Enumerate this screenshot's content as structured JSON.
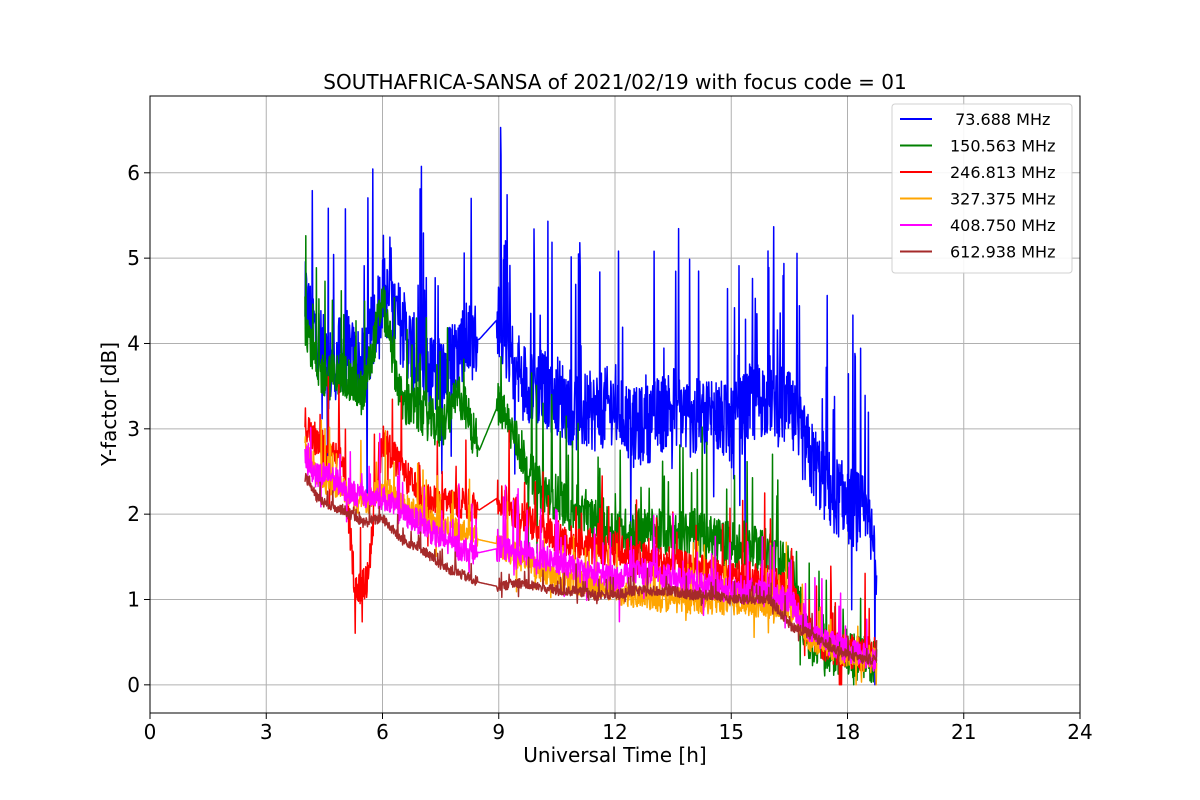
{
  "chart_data": {
    "type": "line",
    "title": "SOUTHAFRICA-SANSA of 2021/02/19 with focus code = 01",
    "xlabel": "Universal Time [h]",
    "ylabel": "Y-factor [dB]",
    "xlim": [
      0,
      24
    ],
    "ylim": [
      -0.33,
      6.9
    ],
    "xticks": [
      0,
      3,
      6,
      9,
      12,
      15,
      18,
      21,
      24
    ],
    "yticks": [
      0,
      1,
      2,
      3,
      4,
      5,
      6
    ],
    "grid": true,
    "legend_position": "top-right",
    "series": [
      {
        "name": " 73.688 MHz",
        "color": "#0000ff",
        "volatility": 0.95,
        "points": [
          [
            4.0,
            4.5
          ],
          [
            4.3,
            4.1
          ],
          [
            4.6,
            3.7
          ],
          [
            5.0,
            3.9
          ],
          [
            5.5,
            3.7
          ],
          [
            6.0,
            4.6
          ],
          [
            6.5,
            4.2
          ],
          [
            7.0,
            3.7
          ],
          [
            7.5,
            3.6
          ],
          [
            8.0,
            4.0
          ],
          [
            8.5,
            4.05
          ],
          [
            9.0,
            4.3
          ],
          [
            9.5,
            3.6
          ],
          [
            10.0,
            3.5
          ],
          [
            10.5,
            3.4
          ],
          [
            11.0,
            3.2
          ],
          [
            11.5,
            3.2
          ],
          [
            12.0,
            3.3
          ],
          [
            12.5,
            3.0
          ],
          [
            13.0,
            3.1
          ],
          [
            13.5,
            3.3
          ],
          [
            14.0,
            3.1
          ],
          [
            14.5,
            3.2
          ],
          [
            15.0,
            3.0
          ],
          [
            15.5,
            3.3
          ],
          [
            16.0,
            3.4
          ],
          [
            16.5,
            3.2
          ],
          [
            17.0,
            2.7
          ],
          [
            17.5,
            2.3
          ],
          [
            18.0,
            2.1
          ],
          [
            18.4,
            2.0
          ],
          [
            18.75,
            1.5
          ]
        ]
      },
      {
        "name": "150.563 MHz",
        "color": "#008000",
        "volatility": 0.55,
        "points": [
          [
            4.0,
            4.3
          ],
          [
            4.3,
            3.7
          ],
          [
            4.6,
            3.6
          ],
          [
            5.0,
            3.65
          ],
          [
            5.5,
            3.4
          ],
          [
            6.0,
            4.5
          ],
          [
            6.5,
            3.3
          ],
          [
            7.0,
            3.2
          ],
          [
            7.5,
            3.0
          ],
          [
            8.0,
            3.4
          ],
          [
            8.5,
            2.75
          ],
          [
            9.0,
            3.3
          ],
          [
            9.5,
            2.8
          ],
          [
            10.0,
            2.3
          ],
          [
            10.5,
            2.2
          ],
          [
            11.0,
            2.0
          ],
          [
            11.5,
            1.9
          ],
          [
            12.0,
            1.8
          ],
          [
            12.5,
            1.8
          ],
          [
            13.0,
            1.8
          ],
          [
            13.5,
            1.75
          ],
          [
            14.0,
            1.8
          ],
          [
            14.5,
            1.7
          ],
          [
            15.0,
            1.65
          ],
          [
            15.5,
            1.6
          ],
          [
            16.0,
            1.55
          ],
          [
            16.5,
            1.4
          ],
          [
            17.0,
            0.5
          ],
          [
            17.5,
            0.4
          ],
          [
            18.0,
            0.35
          ],
          [
            18.4,
            0.3
          ],
          [
            18.75,
            0.3
          ]
        ]
      },
      {
        "name": "246.813 MHz",
        "color": "#ff0000",
        "volatility": 0.4,
        "points": [
          [
            4.0,
            3.1
          ],
          [
            4.3,
            2.8
          ],
          [
            4.6,
            2.7
          ],
          [
            5.0,
            2.6
          ],
          [
            5.3,
            1.1
          ],
          [
            5.6,
            1.2
          ],
          [
            6.0,
            2.9
          ],
          [
            6.5,
            2.5
          ],
          [
            7.0,
            2.2
          ],
          [
            7.5,
            2.1
          ],
          [
            8.0,
            2.15
          ],
          [
            8.5,
            2.05
          ],
          [
            9.0,
            2.2
          ],
          [
            9.5,
            2.0
          ],
          [
            10.0,
            1.85
          ],
          [
            10.5,
            1.75
          ],
          [
            11.0,
            1.65
          ],
          [
            11.5,
            1.6
          ],
          [
            12.0,
            1.6
          ],
          [
            12.5,
            1.5
          ],
          [
            13.0,
            1.45
          ],
          [
            13.5,
            1.4
          ],
          [
            14.0,
            1.35
          ],
          [
            14.5,
            1.3
          ],
          [
            15.0,
            1.25
          ],
          [
            15.5,
            1.25
          ],
          [
            16.0,
            1.2
          ],
          [
            16.5,
            1.1
          ],
          [
            17.0,
            0.6
          ],
          [
            17.5,
            0.45
          ],
          [
            18.0,
            0.4
          ],
          [
            18.4,
            0.35
          ],
          [
            18.75,
            0.4
          ]
        ]
      },
      {
        "name": "327.375 MHz",
        "color": "#ffa500",
        "volatility": 0.3,
        "points": [
          [
            4.0,
            2.8
          ],
          [
            4.3,
            2.5
          ],
          [
            4.6,
            2.35
          ],
          [
            5.0,
            2.3
          ],
          [
            5.5,
            2.1
          ],
          [
            6.0,
            2.3
          ],
          [
            6.5,
            2.1
          ],
          [
            7.0,
            2.0
          ],
          [
            7.5,
            1.9
          ],
          [
            8.0,
            1.8
          ],
          [
            8.5,
            1.7
          ],
          [
            9.0,
            1.65
          ],
          [
            9.5,
            1.5
          ],
          [
            10.0,
            1.35
          ],
          [
            10.5,
            1.25
          ],
          [
            11.0,
            1.2
          ],
          [
            11.5,
            1.15
          ],
          [
            12.0,
            1.1
          ],
          [
            12.5,
            1.05
          ],
          [
            13.0,
            1.0
          ],
          [
            13.5,
            1.0
          ],
          [
            14.0,
            0.98
          ],
          [
            14.5,
            0.97
          ],
          [
            15.0,
            0.95
          ],
          [
            15.5,
            0.95
          ],
          [
            16.0,
            0.92
          ],
          [
            16.5,
            0.9
          ],
          [
            17.0,
            0.55
          ],
          [
            17.5,
            0.45
          ],
          [
            18.0,
            0.35
          ],
          [
            18.4,
            0.3
          ],
          [
            18.75,
            0.3
          ]
        ]
      },
      {
        "name": "408.750 MHz",
        "color": "#ff00ff",
        "volatility": 0.3,
        "points": [
          [
            4.0,
            2.65
          ],
          [
            4.3,
            2.45
          ],
          [
            4.6,
            2.5
          ],
          [
            5.0,
            2.3
          ],
          [
            5.5,
            2.2
          ],
          [
            6.0,
            2.2
          ],
          [
            6.5,
            2.0
          ],
          [
            7.0,
            1.9
          ],
          [
            7.5,
            1.7
          ],
          [
            8.0,
            1.6
          ],
          [
            8.5,
            1.55
          ],
          [
            9.0,
            1.6
          ],
          [
            9.5,
            1.55
          ],
          [
            10.0,
            1.5
          ],
          [
            10.5,
            1.45
          ],
          [
            11.0,
            1.35
          ],
          [
            11.5,
            1.3
          ],
          [
            12.0,
            1.25
          ],
          [
            12.5,
            1.35
          ],
          [
            13.0,
            1.3
          ],
          [
            13.5,
            1.25
          ],
          [
            14.0,
            1.2
          ],
          [
            14.5,
            1.15
          ],
          [
            15.0,
            1.1
          ],
          [
            15.5,
            1.1
          ],
          [
            16.0,
            1.05
          ],
          [
            16.5,
            1.0
          ],
          [
            17.0,
            0.65
          ],
          [
            17.5,
            0.5
          ],
          [
            18.0,
            0.4
          ],
          [
            18.4,
            0.35
          ],
          [
            18.75,
            0.3
          ]
        ]
      },
      {
        "name": "612.938 MHz",
        "color": "#a52a2a",
        "volatility": 0.12,
        "points": [
          [
            4.0,
            2.45
          ],
          [
            4.3,
            2.2
          ],
          [
            4.6,
            2.1
          ],
          [
            5.0,
            2.05
          ],
          [
            5.5,
            1.9
          ],
          [
            6.0,
            1.95
          ],
          [
            6.5,
            1.7
          ],
          [
            7.0,
            1.6
          ],
          [
            7.5,
            1.4
          ],
          [
            8.0,
            1.3
          ],
          [
            8.5,
            1.2
          ],
          [
            9.0,
            1.15
          ],
          [
            9.5,
            1.2
          ],
          [
            10.0,
            1.15
          ],
          [
            10.5,
            1.1
          ],
          [
            11.0,
            1.1
          ],
          [
            11.5,
            1.05
          ],
          [
            12.0,
            1.05
          ],
          [
            12.5,
            1.1
          ],
          [
            13.0,
            1.1
          ],
          [
            13.5,
            1.1
          ],
          [
            14.0,
            1.05
          ],
          [
            14.5,
            1.05
          ],
          [
            15.0,
            1.0
          ],
          [
            15.5,
            1.0
          ],
          [
            16.0,
            1.0
          ],
          [
            16.5,
            0.7
          ],
          [
            17.0,
            0.6
          ],
          [
            17.5,
            0.45
          ],
          [
            18.0,
            0.35
          ],
          [
            18.4,
            0.3
          ],
          [
            18.75,
            0.3
          ]
        ]
      }
    ]
  }
}
